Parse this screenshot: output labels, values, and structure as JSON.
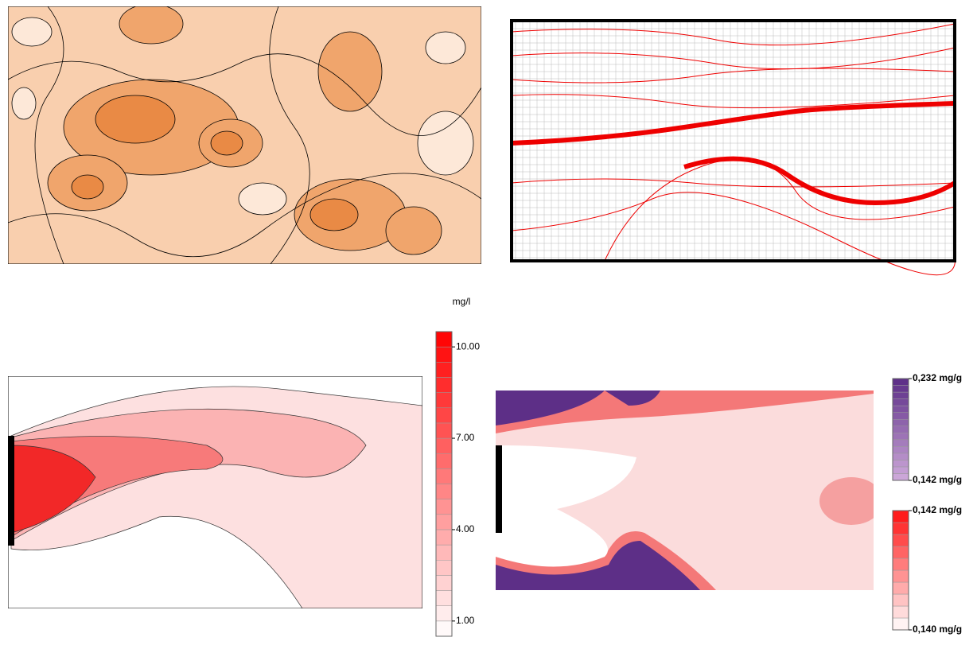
{
  "chart_data": [
    {
      "type": "heatmap",
      "colorbars": [
        {
          "title": "mg/l",
          "lim": [
            0.5,
            10.5
          ],
          "step": 0.5,
          "colors": [
            "#ffffff",
            "#ff0000"
          ],
          "ticks": [
            {
              "value": 1,
              "label": "1.00"
            },
            {
              "value": 4,
              "label": "4.00"
            },
            {
              "value": 7,
              "label": "7.00"
            },
            {
              "value": 10,
              "label": "10.00"
            }
          ]
        }
      ]
    },
    {
      "type": "heatmap",
      "colorbars": [
        {
          "lim": [
            0.142,
            0.232
          ],
          "step": 0.006,
          "colors": [
            "#cfaadb",
            "#5b2c86"
          ],
          "ticks": [
            {
              "value": 0.232,
              "label": "0,232 mg/g"
            },
            {
              "value": 0.142,
              "label": "0,142 mg/g"
            }
          ]
        },
        {
          "lim": [
            0.14,
            0.142
          ],
          "step": 0.0002,
          "colors": [
            "#ffffff",
            "#ff1010"
          ],
          "ticks": [
            {
              "value": 0.142,
              "label": "0,142 mg/g"
            },
            {
              "value": 0.14,
              "label": "0,140 mg/g"
            }
          ]
        }
      ]
    }
  ]
}
